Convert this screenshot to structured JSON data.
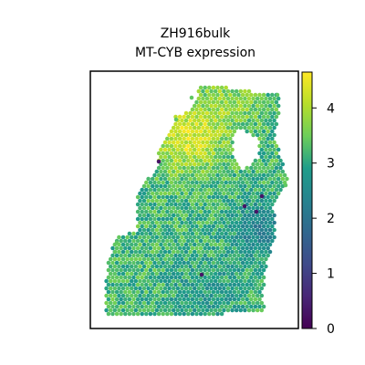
{
  "chart_data": {
    "type": "scatter",
    "subtype": "spatial-hexbin-expression",
    "title_line1": "ZH916bulk",
    "title_line2": "MT-CYB expression",
    "xlabel": "",
    "ylabel": "",
    "axes_ticks": false,
    "grid": false,
    "colorbar": {
      "colormap": "viridis",
      "range": [
        0,
        4.65
      ],
      "ticks": [
        "0",
        "1",
        "2",
        "3",
        "4"
      ],
      "tick_values": [
        0,
        1,
        2,
        3,
        4
      ]
    },
    "colormap_stops": [
      "#440154",
      "#482777",
      "#3f4a8a",
      "#31678e",
      "#26838f",
      "#1f9d8a",
      "#6cce5a",
      "#b6de2b",
      "#fee825"
    ],
    "tissue_shape": {
      "description": "Irregular tissue section; high expression (~4.2) in the upper-left region, medium (~3.2) in most of the tissue, lower (~2.3) along the right-middle edge, a few isolated near-zero spots.",
      "typical_value": 3.2
    }
  }
}
